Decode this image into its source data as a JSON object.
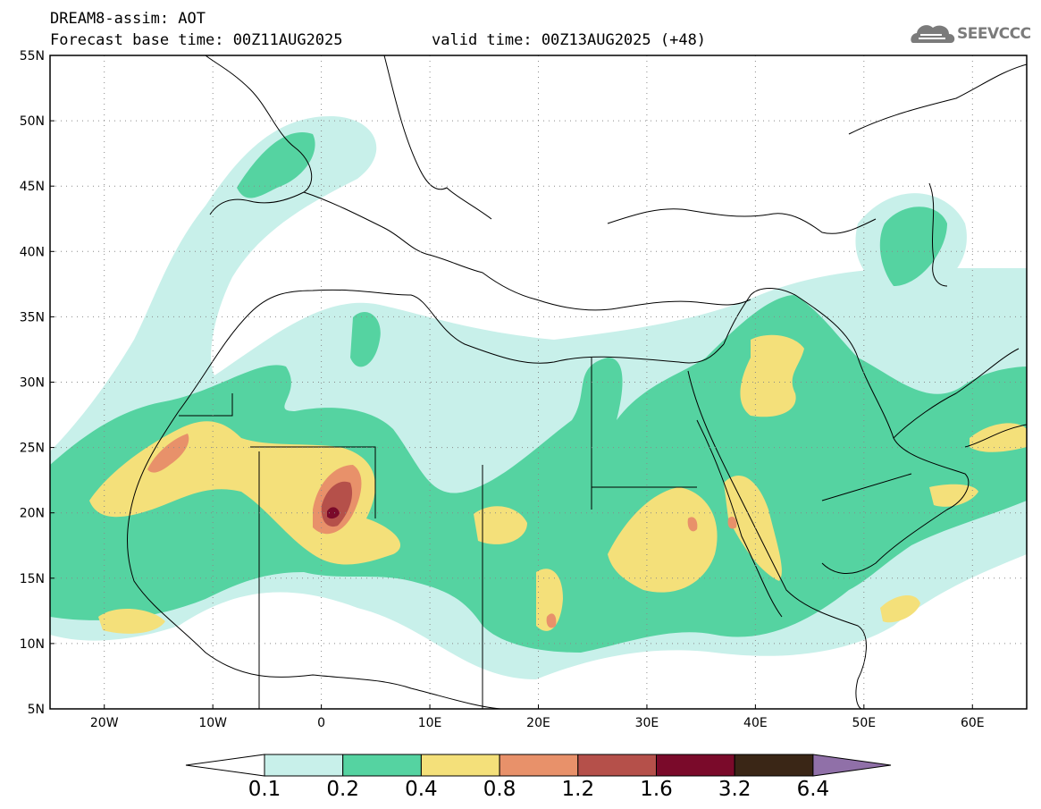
{
  "header": {
    "title": "DREAM8-assim: AOT",
    "base_time": "Forecast base time: 00Z11AUG2025",
    "valid_time": "valid time: 00Z13AUG2025 (+48)"
  },
  "logo": {
    "text": "SEEVCCC",
    "icon": "cloud-icon"
  },
  "map": {
    "lon_range": [
      -25,
      65
    ],
    "lat_range": [
      5,
      55
    ],
    "lon_ticks": [
      {
        "value": -20,
        "label": "20W"
      },
      {
        "value": -10,
        "label": "10W"
      },
      {
        "value": 0,
        "label": "0"
      },
      {
        "value": 10,
        "label": "10E"
      },
      {
        "value": 20,
        "label": "20E"
      },
      {
        "value": 30,
        "label": "30E"
      },
      {
        "value": 40,
        "label": "40E"
      },
      {
        "value": 50,
        "label": "50E"
      },
      {
        "value": 60,
        "label": "60E"
      }
    ],
    "lat_ticks": [
      {
        "value": 55,
        "label": "55N"
      },
      {
        "value": 50,
        "label": "50N"
      },
      {
        "value": 45,
        "label": "45N"
      },
      {
        "value": 40,
        "label": "40N"
      },
      {
        "value": 35,
        "label": "35N"
      },
      {
        "value": 30,
        "label": "30N"
      },
      {
        "value": 25,
        "label": "25N"
      },
      {
        "value": 20,
        "label": "20N"
      },
      {
        "value": 15,
        "label": "15N"
      },
      {
        "value": 10,
        "label": "10N"
      },
      {
        "value": 5,
        "label": "5N"
      }
    ],
    "grid": "dotted"
  },
  "colorbar": {
    "labels": [
      "0.1",
      "0.2",
      "0.4",
      "0.8",
      "1.2",
      "1.6",
      "3.2",
      "6.4"
    ],
    "colors": [
      "#ffffff",
      "#c8f0ea",
      "#55d3a1",
      "#f4e07a",
      "#e8916a",
      "#b5504a",
      "#7a0a2a",
      "#3a2616",
      "#9070a8"
    ]
  }
}
